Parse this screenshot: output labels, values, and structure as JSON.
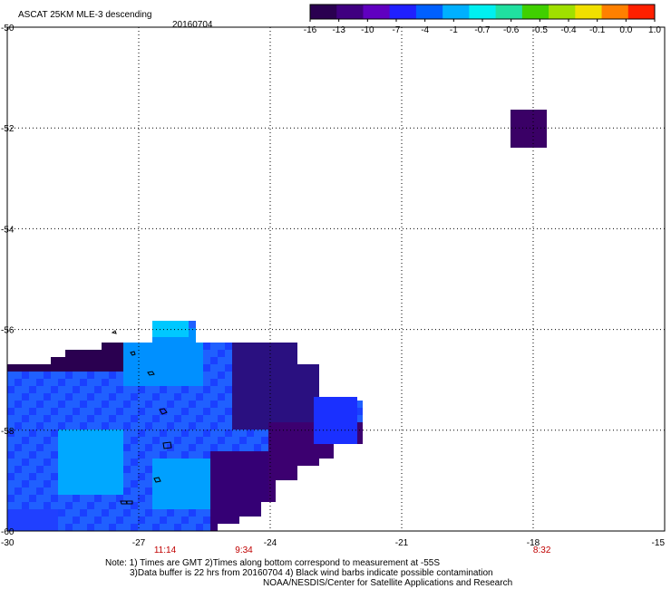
{
  "title": "ASCAT 25KM MLE-3 descending",
  "date": "20160704",
  "colorbar": {
    "tick_labels": [
      "-16",
      "-13",
      "-10",
      "-7",
      "-4",
      "-1",
      "-0.7",
      "-0.6",
      "-0.5",
      "-0.4",
      "-0.1",
      "0.0",
      "1.0"
    ],
    "colors": [
      "#2a0050",
      "#400080",
      "#6000c0",
      "#2020ff",
      "#0060ff",
      "#00b0ff",
      "#00f0f0",
      "#20e0a0",
      "#40d000",
      "#a0e000",
      "#f0e000",
      "#ff8000",
      "#ff2000"
    ]
  },
  "map": {
    "lon_range": [
      -30,
      -15
    ],
    "lat_range": [
      -60,
      -50
    ],
    "lon_labels": [
      "-30",
      "-27",
      "-24",
      "-21",
      "-18",
      "-15"
    ],
    "lat_labels": [
      "-50",
      "-52",
      "-54",
      "-56",
      "-58",
      "-60"
    ],
    "gridlines": "dotted",
    "pass_times": [
      {
        "text": "11:14",
        "lon": -26.4
      },
      {
        "text": "9:34",
        "lon": -24.6
      },
      {
        "text": "8:32",
        "lon": -17.8
      }
    ]
  },
  "notes": {
    "line1": "Note: 1) Times are GMT 2)Times along bottom correspond to measurement at -55S",
    "line2": "3)Data buffer is 22 hrs from 20160704 4) Black wind barbs indicate possible contamination",
    "line3": "NOAA/NESDIS/Center for Satellite Applications and Research"
  }
}
